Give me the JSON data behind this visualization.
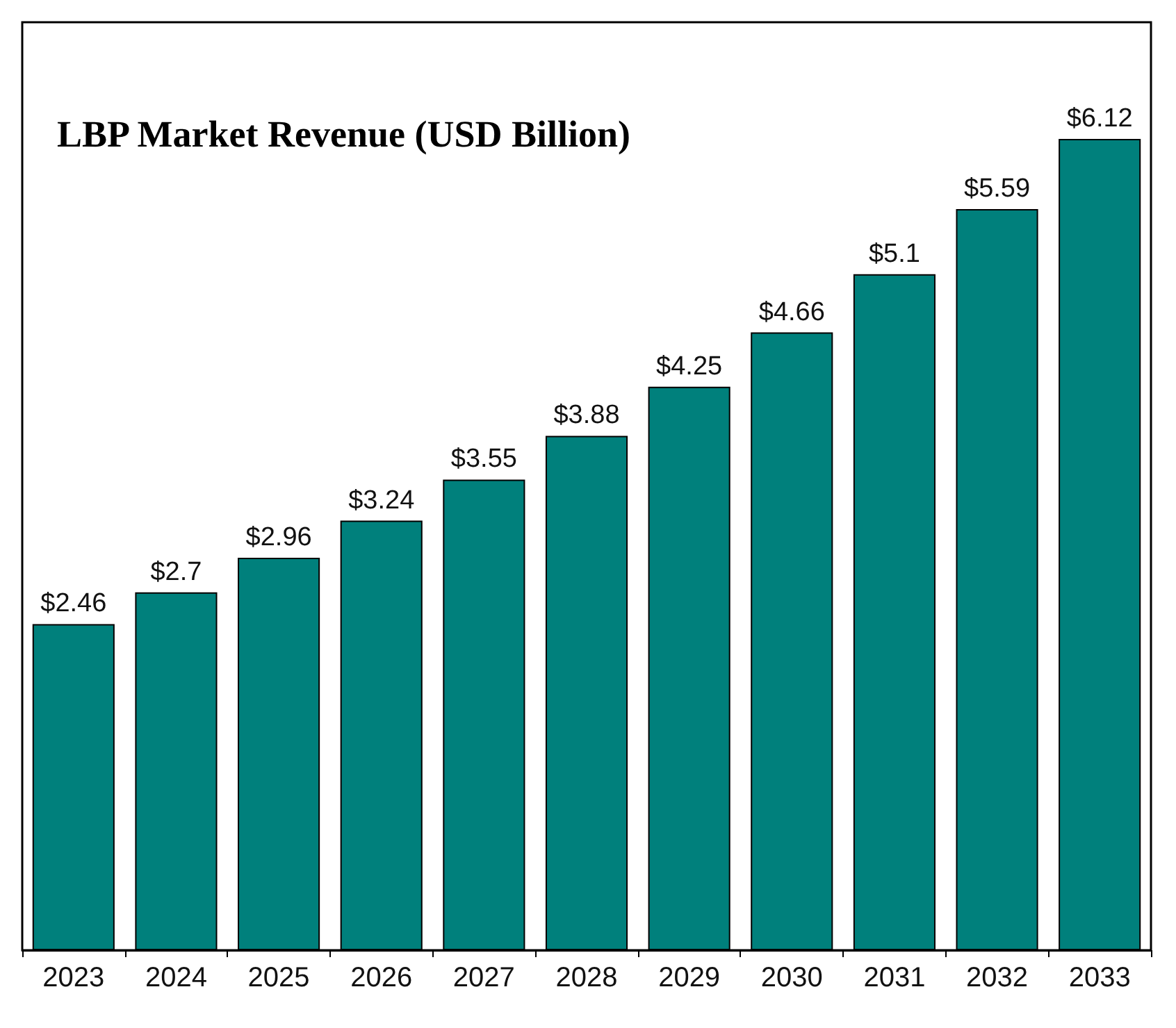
{
  "chart_data": {
    "type": "bar",
    "title": "LBP Market Revenue (USD Billion)",
    "categories": [
      "2023",
      "2024",
      "2025",
      "2026",
      "2027",
      "2028",
      "2029",
      "2030",
      "2031",
      "2032",
      "2033"
    ],
    "values": [
      2.46,
      2.7,
      2.96,
      3.24,
      3.55,
      3.88,
      4.25,
      4.66,
      5.1,
      5.59,
      6.12
    ],
    "value_labels": [
      "$2.46",
      "$2.7",
      "$2.96",
      "$3.24",
      "$3.55",
      "$3.88",
      "$4.25",
      "$4.66",
      "$5.1",
      "$5.59",
      "$6.12"
    ],
    "color": "#00807c"
  }
}
